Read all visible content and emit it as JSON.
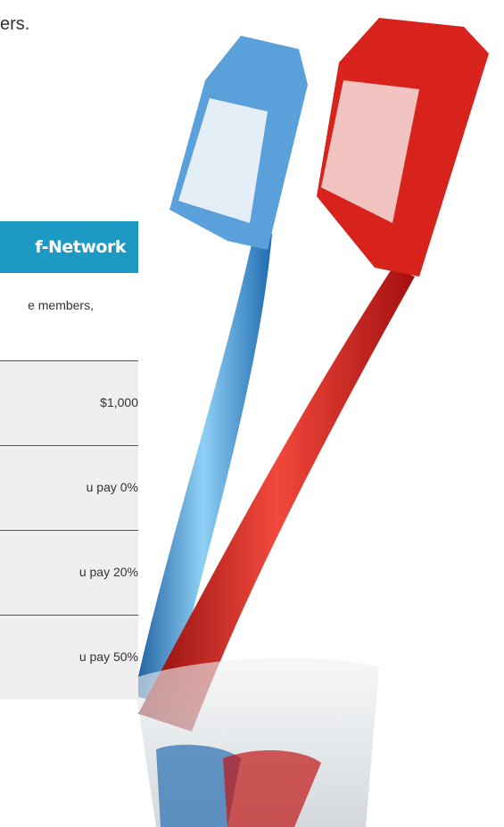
{
  "intro_text": "ers.",
  "table": {
    "header": "f-Network",
    "note": "e members,",
    "rows": [
      "$1,000",
      "u pay 0%",
      "u pay 20%",
      "u pay 50%"
    ]
  }
}
